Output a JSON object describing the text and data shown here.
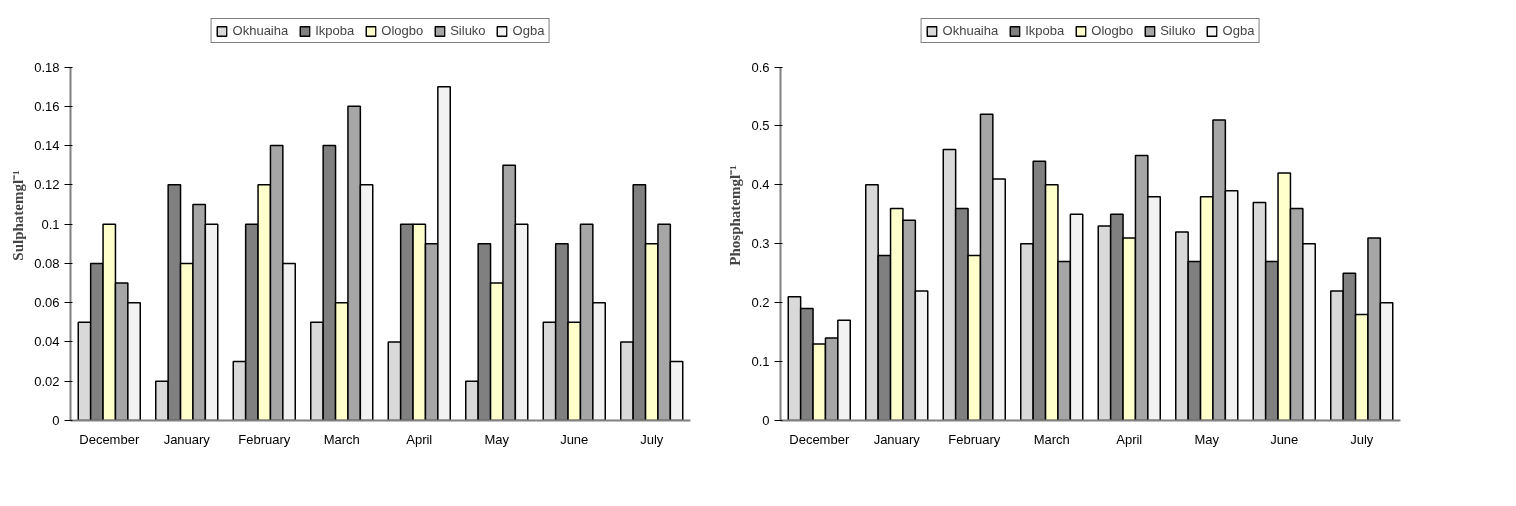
{
  "chart_data": [
    {
      "type": "bar",
      "ylabel": "Sulphatemgl⁻¹",
      "categories": [
        "December",
        "January",
        "February",
        "March",
        "April",
        "May",
        "June",
        "July"
      ],
      "ylim": [
        0,
        0.18
      ],
      "yticks": [
        0,
        0.02,
        0.04,
        0.06,
        0.08,
        0.1,
        0.12,
        0.14,
        0.16,
        0.18
      ],
      "grid": false,
      "legend": "top",
      "series": [
        {
          "name": "Okhuaiha",
          "color": "#d9d9d9",
          "values": [
            0.05,
            0.02,
            0.03,
            0.05,
            0.04,
            0.02,
            0.05,
            0.04
          ]
        },
        {
          "name": "Ikpoba",
          "color": "#808080",
          "values": [
            0.08,
            0.12,
            0.1,
            0.14,
            0.1,
            0.09,
            0.09,
            0.12
          ]
        },
        {
          "name": "Ologbo",
          "color": "#ffffcc",
          "values": [
            0.1,
            0.08,
            0.12,
            0.06,
            0.1,
            0.07,
            0.05,
            0.09
          ]
        },
        {
          "name": "Siluko",
          "color": "#a6a6a6",
          "values": [
            0.07,
            0.11,
            0.14,
            0.16,
            0.09,
            0.13,
            0.1,
            0.1
          ]
        },
        {
          "name": "Ogba",
          "color": "#f2f2f2",
          "values": [
            0.06,
            0.1,
            0.08,
            0.12,
            0.17,
            0.1,
            0.06,
            0.03
          ]
        }
      ]
    },
    {
      "type": "bar",
      "ylabel": "Phosphatemgl⁻¹",
      "categories": [
        "December",
        "January",
        "February",
        "March",
        "April",
        "May",
        "June",
        "July"
      ],
      "ylim": [
        0,
        0.6
      ],
      "yticks": [
        0,
        0.1,
        0.2,
        0.3,
        0.4,
        0.5,
        0.6
      ],
      "grid": false,
      "legend": "top",
      "series": [
        {
          "name": "Okhuaiha",
          "color": "#d9d9d9",
          "values": [
            0.21,
            0.4,
            0.46,
            0.3,
            0.33,
            0.32,
            0.37,
            0.22
          ]
        },
        {
          "name": "Ikpoba",
          "color": "#808080",
          "values": [
            0.19,
            0.28,
            0.36,
            0.44,
            0.35,
            0.27,
            0.27,
            0.25
          ]
        },
        {
          "name": "Ologbo",
          "color": "#ffffcc",
          "values": [
            0.13,
            0.36,
            0.28,
            0.4,
            0.31,
            0.38,
            0.42,
            0.18
          ]
        },
        {
          "name": "Siluko",
          "color": "#a6a6a6",
          "values": [
            0.14,
            0.34,
            0.52,
            0.27,
            0.45,
            0.51,
            0.36,
            0.31
          ]
        },
        {
          "name": "Ogba",
          "color": "#f2f2f2",
          "values": [
            0.17,
            0.22,
            0.41,
            0.35,
            0.38,
            0.39,
            0.3,
            0.2
          ]
        }
      ]
    }
  ]
}
